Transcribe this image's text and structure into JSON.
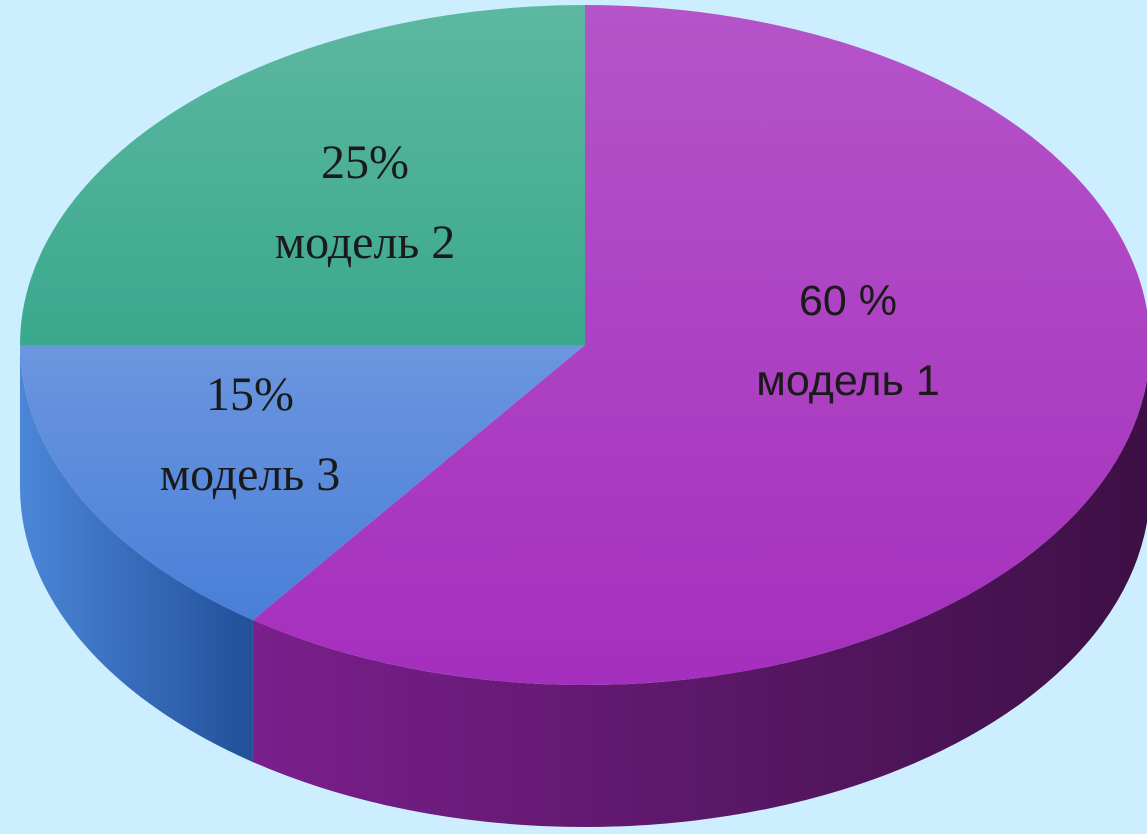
{
  "chart_data": {
    "type": "pie",
    "style": "3d",
    "slices": [
      {
        "label": "модель 1",
        "value_text": "60 %",
        "value": 60,
        "color": "#a52fbd",
        "side_color_light": "#7a1f8c",
        "side_color_dark": "#3d1045",
        "font": "sans"
      },
      {
        "label": "модель 2",
        "value_text": "25%",
        "value": 25,
        "color": "#3aa88c",
        "side_color_light": "#2d8670",
        "side_color_dark": "#1f5e4f",
        "font": "serif"
      },
      {
        "label": "модель 3",
        "value_text": "15%",
        "value": 15,
        "color": "#4a7fd8",
        "side_color_light": "#4c86d8",
        "side_color_dark": "#22509a",
        "font": "serif"
      }
    ],
    "background": "#cdeefe"
  }
}
